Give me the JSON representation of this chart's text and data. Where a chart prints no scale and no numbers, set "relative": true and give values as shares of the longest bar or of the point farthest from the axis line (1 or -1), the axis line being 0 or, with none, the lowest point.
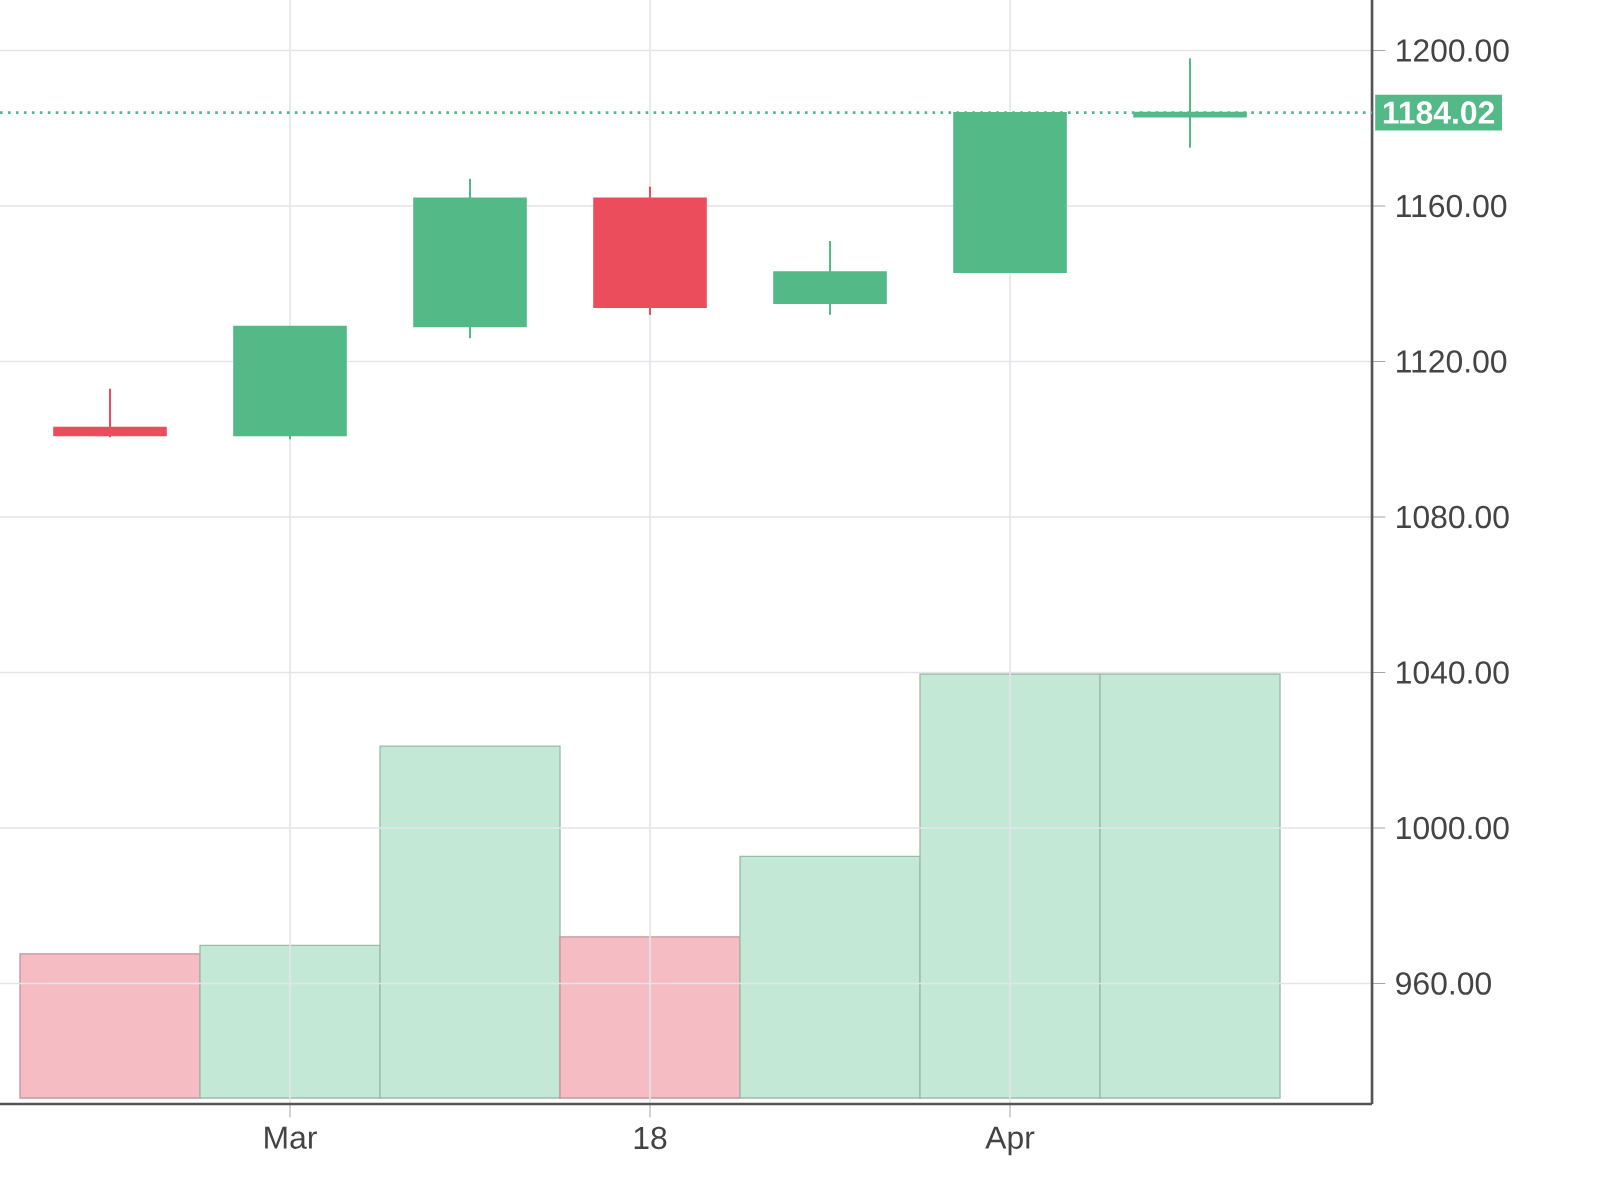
{
  "chart_data": [
    {
      "type": "candlestick",
      "categories": [
        null,
        "Mar",
        null,
        "18",
        null,
        "Apr",
        null
      ],
      "ohlc": [
        [
          1103,
          1113,
          1100.5,
          1101
        ],
        [
          1101,
          1129,
          1100,
          1129
        ],
        [
          1129,
          1167,
          1126,
          1162
        ],
        [
          1162,
          1165,
          1132,
          1134
        ],
        [
          1135,
          1151,
          1132,
          1143
        ],
        [
          1143,
          1184,
          1143,
          1184
        ],
        [
          1183,
          1198,
          1175,
          1184.02
        ]
      ],
      "colors": [
        "#eb4d5c",
        "#53b987",
        "#53b987",
        "#eb4d5c",
        "#53b987",
        "#53b987",
        "#53b987"
      ],
      "ylim": [
        929,
        1213
      ],
      "yticks": [
        {
          "value": 960,
          "label": "960.00"
        },
        {
          "value": 1000,
          "label": "1000.00"
        },
        {
          "value": 1040,
          "label": "1040.00"
        },
        {
          "value": 1080,
          "label": "1080.00"
        },
        {
          "value": 1120,
          "label": "1120.00"
        },
        {
          "value": 1160,
          "label": "1160.00"
        },
        {
          "value": 1200,
          "label": "1200.00"
        }
      ],
      "grid": true,
      "ref_lines": [
        {
          "axis": "y",
          "value": 1184.02,
          "label": "1184.02",
          "color": "#53b987",
          "line_style": "dotted"
        }
      ]
    },
    {
      "type": "bar",
      "relative": true,
      "categories": [
        null,
        null,
        null,
        null,
        null,
        null,
        null
      ],
      "values": [
        0.34,
        0.36,
        0.83,
        0.38,
        0.57,
        1,
        1
      ],
      "colors": [
        "#f5bcc4",
        "#c3e8d5",
        "#c3e8d5",
        "#f5bcc4",
        "#c3e8d5",
        "#c3e8d5",
        "#c3e8d5"
      ]
    }
  ]
}
